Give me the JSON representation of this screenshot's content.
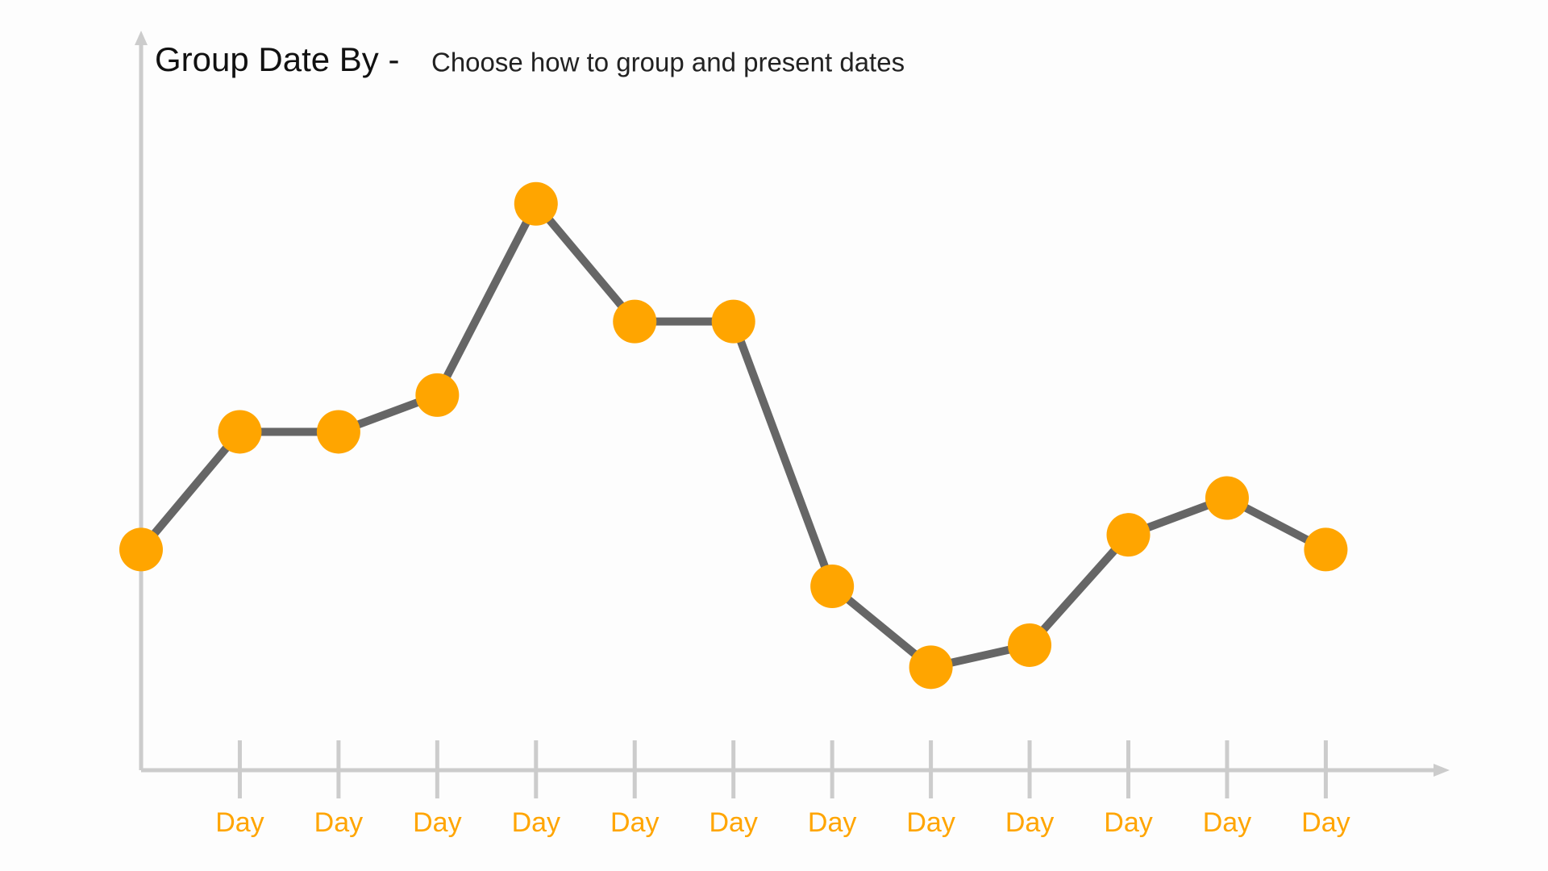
{
  "chart_data": {
    "type": "line",
    "title": "Group Date By -",
    "subtitle": "Choose how to group and present dates",
    "categories": [
      null,
      "Day",
      "Day",
      "Day",
      "Day",
      "Day",
      "Day",
      "Day",
      "Day",
      "Day",
      "Day",
      "Day",
      "Day"
    ],
    "series": [
      {
        "name": null,
        "color": "#666666",
        "marker_color": "#FFA500",
        "values": [
          30,
          46,
          46,
          51,
          77,
          61,
          61,
          25,
          14,
          17,
          32,
          37,
          30
        ]
      }
    ],
    "ylim": [
      0,
      100
    ],
    "label_color": "#FFA500",
    "grid": false
  }
}
